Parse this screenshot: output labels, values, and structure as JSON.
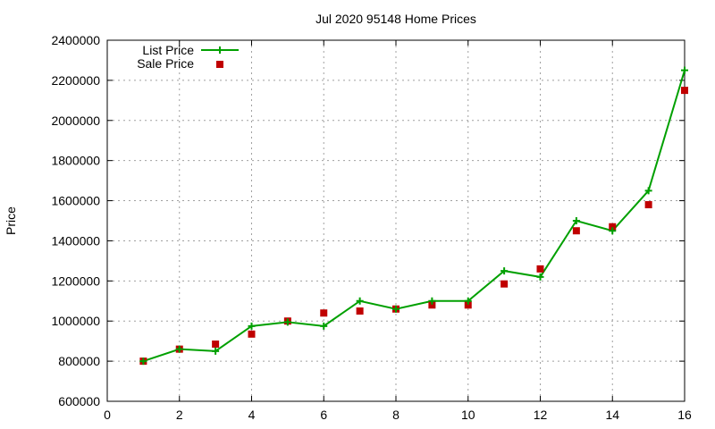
{
  "chart_data": {
    "type": "line",
    "title": "Jul 2020 95148 Home Prices",
    "xlabel": "",
    "ylabel": "Price",
    "xlim": [
      0,
      16
    ],
    "ylim": [
      600000,
      2400000
    ],
    "x_ticks": [
      0,
      2,
      4,
      6,
      8,
      10,
      12,
      14,
      16
    ],
    "y_ticks": [
      600000,
      800000,
      1000000,
      1200000,
      1400000,
      1600000,
      1800000,
      2000000,
      2200000,
      2400000
    ],
    "grid": true,
    "legend_position": "top-left",
    "series": [
      {
        "name": "List Price",
        "style": "line+cross",
        "color": "#00a000",
        "x": [
          1,
          2,
          3,
          4,
          5,
          6,
          7,
          8,
          9,
          10,
          11,
          12,
          13,
          14,
          15,
          16
        ],
        "y": [
          800000,
          860000,
          850000,
          975000,
          995000,
          975000,
          1100000,
          1060000,
          1100000,
          1100000,
          1250000,
          1220000,
          1500000,
          1450000,
          1650000,
          2250000
        ]
      },
      {
        "name": "Sale Price",
        "style": "square",
        "color": "#c00000",
        "x": [
          1,
          2,
          3,
          4,
          5,
          6,
          7,
          8,
          9,
          10,
          11,
          12,
          13,
          14,
          15,
          16
        ],
        "y": [
          800000,
          860000,
          885000,
          935000,
          1000000,
          1040000,
          1050000,
          1060000,
          1080000,
          1080000,
          1185000,
          1260000,
          1450000,
          1470000,
          1580000,
          2150000
        ]
      }
    ]
  }
}
